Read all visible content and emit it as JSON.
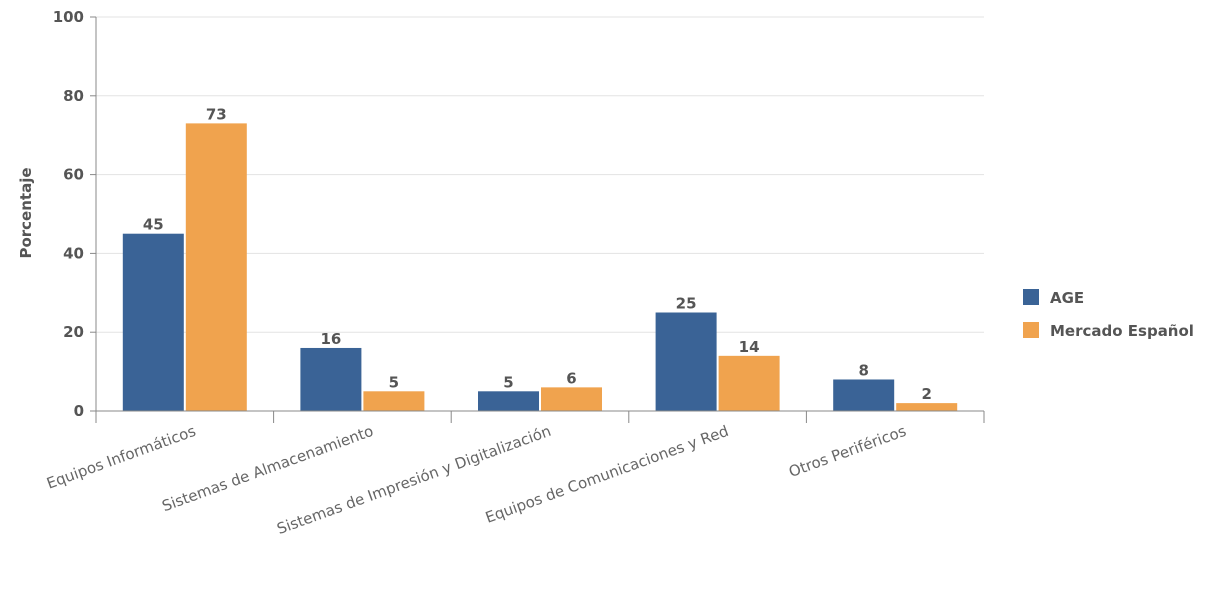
{
  "chart_data": {
    "type": "bar",
    "title": "",
    "xlabel": "",
    "ylabel": "Porcentaje",
    "ylim": [
      0,
      100
    ],
    "yticks": [
      0,
      20,
      40,
      60,
      80,
      100
    ],
    "grid": true,
    "legend_position": "right",
    "categories": [
      "Equipos Informáticos",
      "Sistemas de Almacenamiento",
      "Sistemas de Impresión y Digitalización",
      "Equipos de Comunicaciones y Red",
      "Otros Periféricos"
    ],
    "series": [
      {
        "name": "AGE",
        "color": "#3a6396",
        "values": [
          45,
          16,
          5,
          25,
          8
        ]
      },
      {
        "name": "Mercado Español",
        "color": "#f0a34e",
        "values": [
          73,
          5,
          6,
          14,
          2
        ]
      }
    ]
  }
}
